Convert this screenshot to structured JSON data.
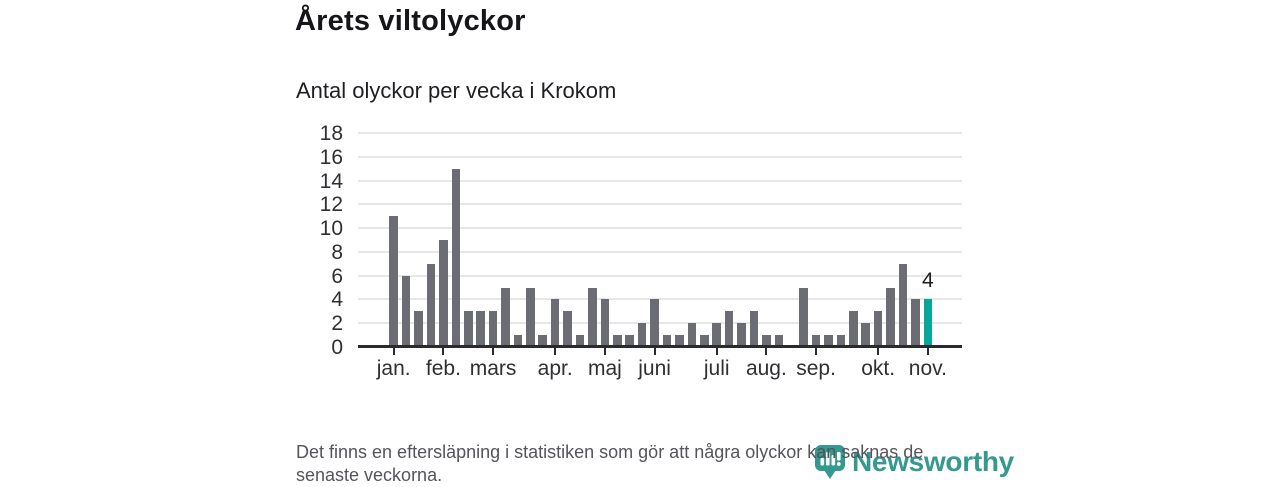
{
  "chart_data": {
    "type": "bar",
    "title": "Årets viltolyckor",
    "subtitle": "Antal olyckor per vecka i Krokom",
    "x_description": "veckor (januari–november)",
    "values": [
      11,
      6,
      3,
      7,
      9,
      15,
      3,
      3,
      3,
      5,
      1,
      5,
      1,
      4,
      3,
      1,
      5,
      4,
      1,
      1,
      2,
      4,
      1,
      1,
      2,
      1,
      2,
      3,
      2,
      3,
      1,
      1,
      0,
      5,
      1,
      1,
      1,
      3,
      2,
      3,
      5,
      7,
      4,
      4
    ],
    "y_ticks": [
      0,
      2,
      4,
      6,
      8,
      10,
      12,
      14,
      16,
      18
    ],
    "ylim": [
      0,
      18
    ],
    "grid": true,
    "month_ticks": [
      {
        "label": "jan.",
        "week_index": 0
      },
      {
        "label": "feb.",
        "week_index": 4
      },
      {
        "label": "mars",
        "week_index": 8
      },
      {
        "label": "apr.",
        "week_index": 13
      },
      {
        "label": "maj",
        "week_index": 17
      },
      {
        "label": "juni",
        "week_index": 21
      },
      {
        "label": "juli",
        "week_index": 26
      },
      {
        "label": "aug.",
        "week_index": 30
      },
      {
        "label": "sep.",
        "week_index": 34
      },
      {
        "label": "okt.",
        "week_index": 39
      },
      {
        "label": "nov.",
        "week_index": 43
      }
    ],
    "highlight": {
      "week_index": 43,
      "value_label": "4"
    },
    "colors": {
      "bar": "#6c6c74",
      "highlight": "#06a89d"
    }
  },
  "footer": {
    "note": "Det finns en eftersläpning i statistiken som gör att några olyckor kan saknas de senaste veckorna."
  },
  "logo": {
    "text": "Newsworthy",
    "color": "#35998f"
  }
}
